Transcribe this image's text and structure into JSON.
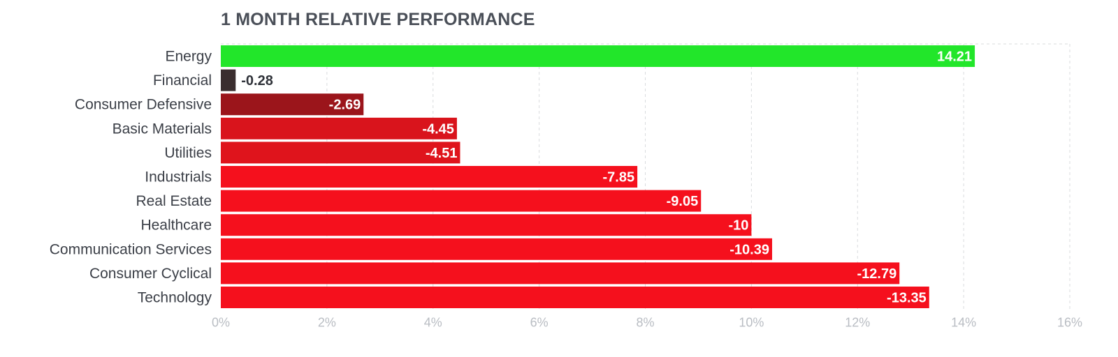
{
  "chart_data": {
    "type": "bar",
    "orientation": "horizontal",
    "title": "1 MONTH RELATIVE PERFORMANCE",
    "categories": [
      "Energy",
      "Financial",
      "Consumer Defensive",
      "Basic Materials",
      "Utilities",
      "Industrials",
      "Real Estate",
      "Healthcare",
      "Communication Services",
      "Consumer Cyclical",
      "Technology"
    ],
    "values": [
      14.21,
      -0.28,
      -2.69,
      -4.45,
      -4.51,
      -7.85,
      -9.05,
      -10,
      -10.39,
      -12.79,
      -13.35
    ],
    "value_labels": [
      "14.21",
      "-0.28",
      "-2.69",
      "-4.45",
      "-4.51",
      "-7.85",
      "-9.05",
      "-10",
      "-10.39",
      "-12.79",
      "-13.35"
    ],
    "bar_colors": [
      "#22e62a",
      "#3a2d2e",
      "#9b151b",
      "#d9141c",
      "#df141c",
      "#f5101d",
      "#f5101d",
      "#f5101d",
      "#f5101d",
      "#f5101d",
      "#f5101d"
    ],
    "note": "bar length shows absolute value",
    "xlim": [
      0,
      16
    ],
    "xticks": [
      "0%",
      "2%",
      "4%",
      "6%",
      "8%",
      "10%",
      "12%",
      "14%",
      "16%"
    ],
    "xlabel": "",
    "ylabel": "",
    "grid": "vertical dashed",
    "legend": "none"
  },
  "colors": {
    "title": "#4a4f58",
    "grid": "#d9dbde",
    "tick": "#b9bdc3",
    "category": "#3b3f47"
  }
}
